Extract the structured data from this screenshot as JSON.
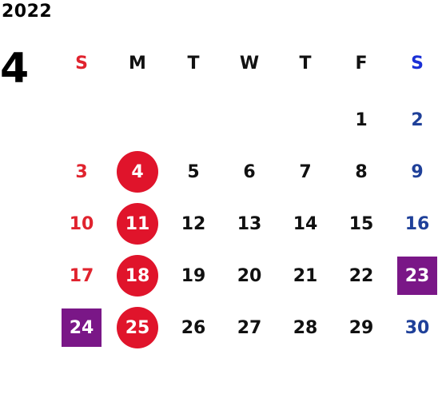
{
  "calendar": {
    "year": "2022",
    "month": "4",
    "weekdays": [
      "S",
      "M",
      "T",
      "W",
      "T",
      "F",
      "S"
    ],
    "weeks": [
      [
        "",
        "",
        "",
        "",
        "",
        "1",
        "2"
      ],
      [
        "3",
        "4",
        "5",
        "6",
        "7",
        "8",
        "9"
      ],
      [
        "10",
        "11",
        "12",
        "13",
        "14",
        "15",
        "16"
      ],
      [
        "17",
        "18",
        "19",
        "20",
        "21",
        "22",
        "23"
      ],
      [
        "24",
        "25",
        "26",
        "27",
        "28",
        "29",
        "30"
      ]
    ],
    "circled_days": [
      "4",
      "11",
      "18",
      "25"
    ],
    "boxed_days": [
      "23",
      "24"
    ]
  },
  "colors": {
    "sunday": "#e0232e",
    "saturday_header": "#1a2fd6",
    "saturday": "#1f4099",
    "circle": "#e0142b",
    "box": "#7a1787"
  }
}
